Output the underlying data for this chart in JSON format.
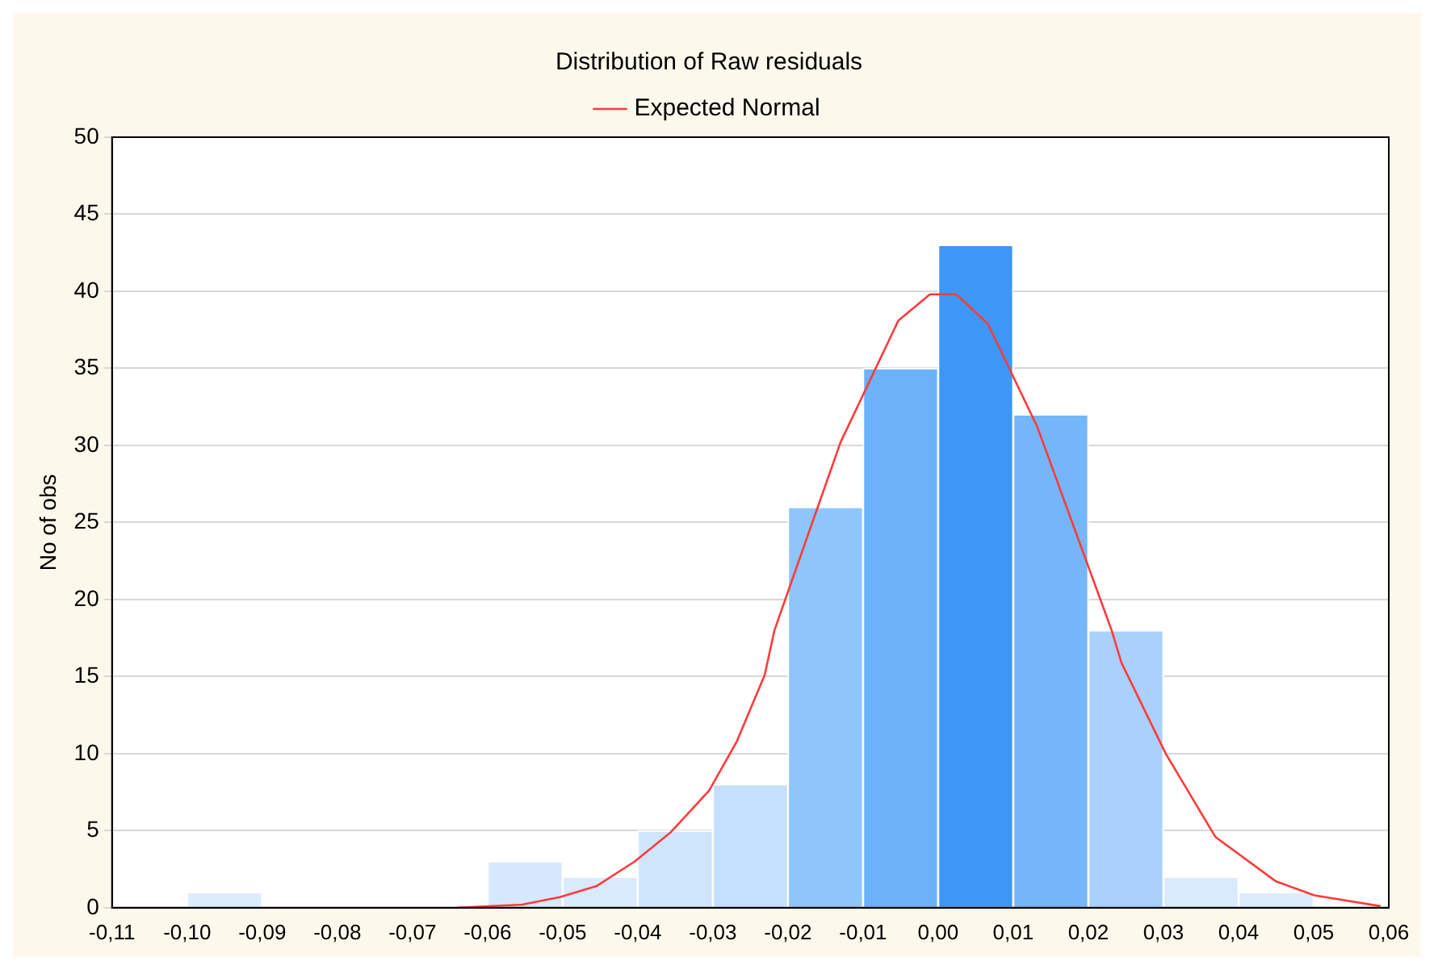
{
  "chart_data": {
    "type": "histogram",
    "title": "Distribution of Raw residuals",
    "ylabel": "No of obs",
    "series": [
      {
        "type": "histogram",
        "colors": [
          "#dcecfd",
          "#dcecfd",
          "#dcecfd",
          "#dcecfd",
          "#d6e9fc",
          "#d9eafd",
          "#cfe5fc",
          "#c4e0fc",
          "#8ec5fa",
          "#6cb2f9",
          "#3d97f6",
          "#74b6f9",
          "#a9d1fb",
          "#d9eafd",
          "#dcecfd"
        ],
        "bins": [
          -0.1,
          -0.09,
          -0.08,
          -0.07,
          -0.06,
          -0.05,
          -0.04,
          -0.03,
          -0.02,
          -0.01,
          0.0,
          0.01,
          0.02,
          0.03,
          0.04,
          0.05
        ],
        "values": [
          1,
          0,
          0,
          0,
          3,
          2,
          5,
          8,
          26,
          35,
          43,
          32,
          18,
          2,
          1
        ]
      },
      {
        "type": "line",
        "name": "Expected Normal",
        "color": "#ff3b3b",
        "x": [
          -0.064,
          -0.0554,
          -0.0503,
          -0.0455,
          -0.0404,
          -0.0356,
          -0.0305,
          -0.0268,
          -0.0231,
          -0.0218,
          -0.013,
          -0.0053,
          -0.0011,
          0.0024,
          0.0066,
          0.0132,
          0.0231,
          0.0244,
          0.0303,
          0.0369,
          0.045,
          0.0501,
          0.0589
        ],
        "values": [
          0,
          0.2,
          0.7,
          1.4,
          3.0,
          4.9,
          7.6,
          10.8,
          15.1,
          18,
          30.2,
          38.1,
          39.8,
          39.8,
          37.9,
          31.2,
          18,
          15.9,
          10,
          4.6,
          1.7,
          0.8,
          0.1
        ]
      }
    ],
    "xlim": [
      -0.11,
      0.06
    ],
    "xticks": [
      {
        "value": -0.11,
        "label": "-0,11"
      },
      {
        "value": -0.1,
        "label": "-0,10"
      },
      {
        "value": -0.09,
        "label": "-0,09"
      },
      {
        "value": -0.08,
        "label": "-0,08"
      },
      {
        "value": -0.07,
        "label": "-0,07"
      },
      {
        "value": -0.06,
        "label": "-0,06"
      },
      {
        "value": -0.05,
        "label": "-0,05"
      },
      {
        "value": -0.04,
        "label": "-0,04"
      },
      {
        "value": -0.03,
        "label": "-0,03"
      },
      {
        "value": -0.02,
        "label": "-0,02"
      },
      {
        "value": -0.01,
        "label": "-0,01"
      },
      {
        "value": 0.0,
        "label": "0,00"
      },
      {
        "value": 0.01,
        "label": "0,01"
      },
      {
        "value": 0.02,
        "label": "0,02"
      },
      {
        "value": 0.03,
        "label": "0,03"
      },
      {
        "value": 0.04,
        "label": "0,04"
      },
      {
        "value": 0.05,
        "label": "0,05"
      },
      {
        "value": 0.06,
        "label": "0,06"
      }
    ],
    "ylim": [
      0,
      50
    ],
    "yticks": [
      0,
      5,
      10,
      15,
      20,
      25,
      30,
      35,
      40,
      45,
      50
    ],
    "grid": "y",
    "legend": "top",
    "marker": "none",
    "line_style": "solid"
  }
}
